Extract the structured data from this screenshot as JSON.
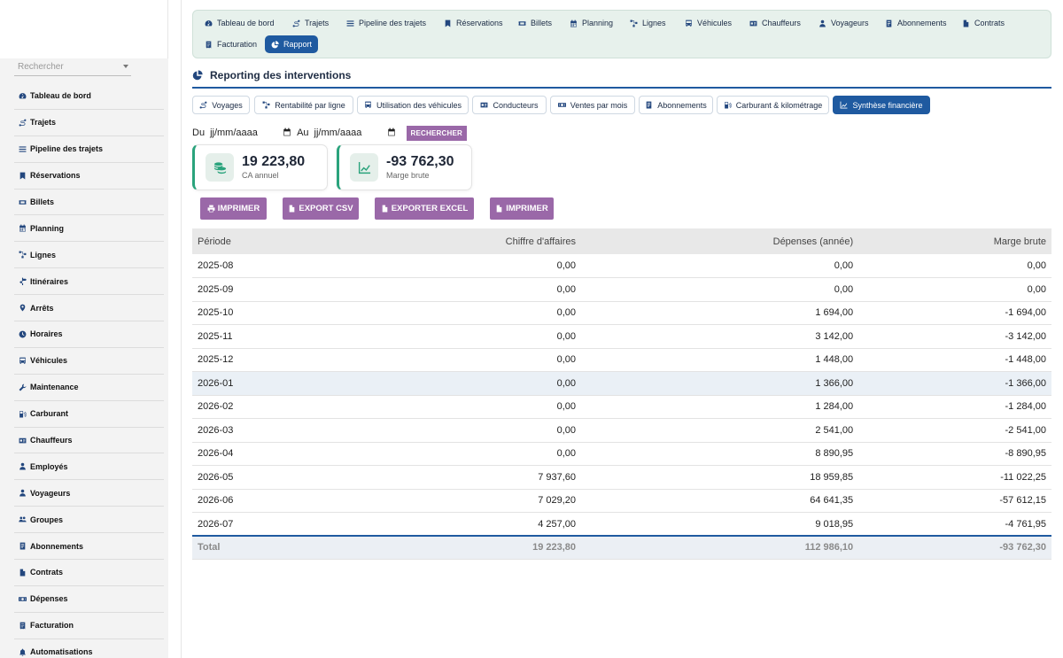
{
  "sidebar": {
    "search_placeholder": "Rechercher",
    "items": [
      {
        "label": "Tableau de bord",
        "icon": "dashboard-icon"
      },
      {
        "label": "Trajets",
        "icon": "route-icon"
      },
      {
        "label": "Pipeline des trajets",
        "icon": "list-icon"
      },
      {
        "label": "Réservations",
        "icon": "bookmark-icon"
      },
      {
        "label": "Billets",
        "icon": "ticket-icon"
      },
      {
        "label": "Planning",
        "icon": "calendar-icon"
      },
      {
        "label": "Lignes",
        "icon": "lines-icon"
      },
      {
        "label": "Itinéraires",
        "icon": "signpost-icon"
      },
      {
        "label": "Arrêts",
        "icon": "map-pin-icon"
      },
      {
        "label": "Horaires",
        "icon": "clock-icon"
      },
      {
        "label": "Véhicules",
        "icon": "bus-icon"
      },
      {
        "label": "Maintenance",
        "icon": "wrench-icon"
      },
      {
        "label": "Carburant",
        "icon": "fuel-icon"
      },
      {
        "label": "Chauffeurs",
        "icon": "id-card-icon"
      },
      {
        "label": "Employés",
        "icon": "user-icon"
      },
      {
        "label": "Voyageurs",
        "icon": "user-icon"
      },
      {
        "label": "Groupes",
        "icon": "users-icon"
      },
      {
        "label": "Abonnements",
        "icon": "doc-icon"
      },
      {
        "label": "Contrats",
        "icon": "file-icon"
      },
      {
        "label": "Dépenses",
        "icon": "money-icon"
      },
      {
        "label": "Facturation",
        "icon": "invoice-icon"
      },
      {
        "label": "Automatisations",
        "icon": "bell-icon"
      }
    ]
  },
  "topnav": {
    "items": [
      {
        "label": "Tableau de bord",
        "icon": "dashboard-icon"
      },
      {
        "label": "Trajets",
        "icon": "route-icon"
      },
      {
        "label": "Pipeline des trajets",
        "icon": "list-icon"
      },
      {
        "label": "Réservations",
        "icon": "bookmark-icon"
      },
      {
        "label": "Billets",
        "icon": "ticket-icon"
      },
      {
        "label": "Planning",
        "icon": "calendar-icon"
      },
      {
        "label": "Lignes",
        "icon": "lines-icon"
      },
      {
        "label": "Véhicules",
        "icon": "bus-icon"
      },
      {
        "label": "Chauffeurs",
        "icon": "id-card-icon"
      },
      {
        "label": "Voyageurs",
        "icon": "user-icon"
      },
      {
        "label": "Abonnements",
        "icon": "doc-icon"
      },
      {
        "label": "Contrats",
        "icon": "file-icon"
      },
      {
        "label": "Facturation",
        "icon": "invoice-icon"
      },
      {
        "label": "Rapport",
        "icon": "pie-chart-icon",
        "active": true
      }
    ]
  },
  "section": {
    "title": "Reporting des interventions",
    "icon": "pie-chart-icon"
  },
  "report_tabs": [
    {
      "label": "Voyages",
      "icon": "route-icon"
    },
    {
      "label": "Rentabilité par ligne",
      "icon": "lines-icon"
    },
    {
      "label": "Utilisation des véhicules",
      "icon": "bus-icon"
    },
    {
      "label": "Conducteurs",
      "icon": "id-card-icon"
    },
    {
      "label": "Ventes par mois",
      "icon": "money-icon"
    },
    {
      "label": "Abonnements",
      "icon": "doc-icon"
    },
    {
      "label": "Carburant & kilométrage",
      "icon": "fuel-icon"
    },
    {
      "label": "Synthèse financière",
      "icon": "chart-line-icon",
      "active": true
    }
  ],
  "filter": {
    "from_label": "Du",
    "from_placeholder": "jj/mm/aaaa",
    "to_label": "Au",
    "to_placeholder": "jj/mm/aaaa",
    "search_label": "RECHERCHER"
  },
  "kpis": [
    {
      "value": "19 223,80",
      "label": "CA annuel",
      "icon": "coins-icon"
    },
    {
      "value": "-93 762,30",
      "label": "Marge brute",
      "icon": "chart-line-icon"
    }
  ],
  "actions": [
    {
      "label": "IMPRIMER",
      "icon": "print-icon"
    },
    {
      "label": "EXPORT CSV",
      "icon": "file-icon"
    },
    {
      "label": "EXPORTER EXCEL",
      "icon": "file-icon"
    },
    {
      "label": "IMPRIMER",
      "icon": "file-icon"
    }
  ],
  "table": {
    "headers": [
      "Période",
      "Chiffre d'affaires",
      "Dépenses (année)",
      "Marge brute"
    ],
    "rows": [
      [
        "2025-08",
        "0,00",
        "0,00",
        "0,00"
      ],
      [
        "2025-09",
        "0,00",
        "0,00",
        "0,00"
      ],
      [
        "2025-10",
        "0,00",
        "1 694,00",
        "-1 694,00"
      ],
      [
        "2025-11",
        "0,00",
        "3 142,00",
        "-3 142,00"
      ],
      [
        "2025-12",
        "0,00",
        "1 448,00",
        "-1 448,00"
      ],
      [
        "2026-01",
        "0,00",
        "1 366,00",
        "-1 366,00"
      ],
      [
        "2026-02",
        "0,00",
        "1 284,00",
        "-1 284,00"
      ],
      [
        "2026-03",
        "0,00",
        "2 541,00",
        "-2 541,00"
      ],
      [
        "2026-04",
        "0,00",
        "8 890,95",
        "-8 890,95"
      ],
      [
        "2026-05",
        "7 937,60",
        "18 959,85",
        "-11 022,25"
      ],
      [
        "2026-06",
        "7 029,20",
        "64 641,35",
        "-57 612,15"
      ],
      [
        "2026-07",
        "4 257,00",
        "9 018,95",
        "-4 761,95"
      ]
    ],
    "highlight_row": 5,
    "total": [
      "Total",
      "19 223,80",
      "112 986,10",
      "-93 762,30"
    ]
  },
  "colors": {
    "primary": "#1f5aa0",
    "accent_purple": "#9a68a8",
    "accent_green": "#2aa37c",
    "nav_bg": "#e7f1ec"
  }
}
